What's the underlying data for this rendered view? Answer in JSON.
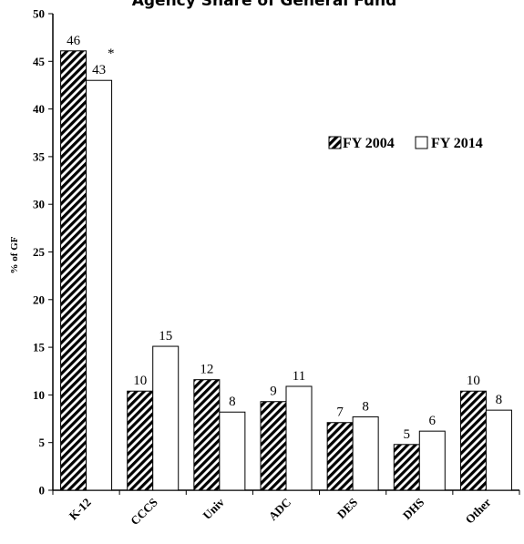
{
  "chart_data": {
    "type": "bar",
    "title": "Agency Share of General Fund",
    "ylabel": "% of GF",
    "xlabel": "",
    "ylim": [
      0,
      50
    ],
    "yticks": [
      0,
      5,
      10,
      15,
      20,
      25,
      30,
      35,
      40,
      45,
      50
    ],
    "categories": [
      "K-12",
      "CCCS",
      "Univ",
      "ADC",
      "DES",
      "DHS",
      "Other"
    ],
    "series": [
      {
        "name": "FY 2004",
        "values": [
          46.1,
          10.4,
          11.6,
          9.3,
          7.1,
          4.8,
          10.4
        ],
        "labels": [
          "46",
          "10",
          "12",
          "9",
          "7",
          "5",
          "10"
        ],
        "fill": "hatched"
      },
      {
        "name": "FY 2014",
        "values": [
          43.0,
          15.1,
          8.2,
          10.9,
          7.7,
          6.2,
          8.4
        ],
        "labels": [
          "43",
          "15",
          "8",
          "11",
          "8",
          "6",
          "8"
        ],
        "fill": "white"
      }
    ],
    "annotation": "*",
    "grid": false,
    "legend_position": "right"
  },
  "colors": {
    "stroke": "#000000",
    "background": "#ffffff"
  }
}
